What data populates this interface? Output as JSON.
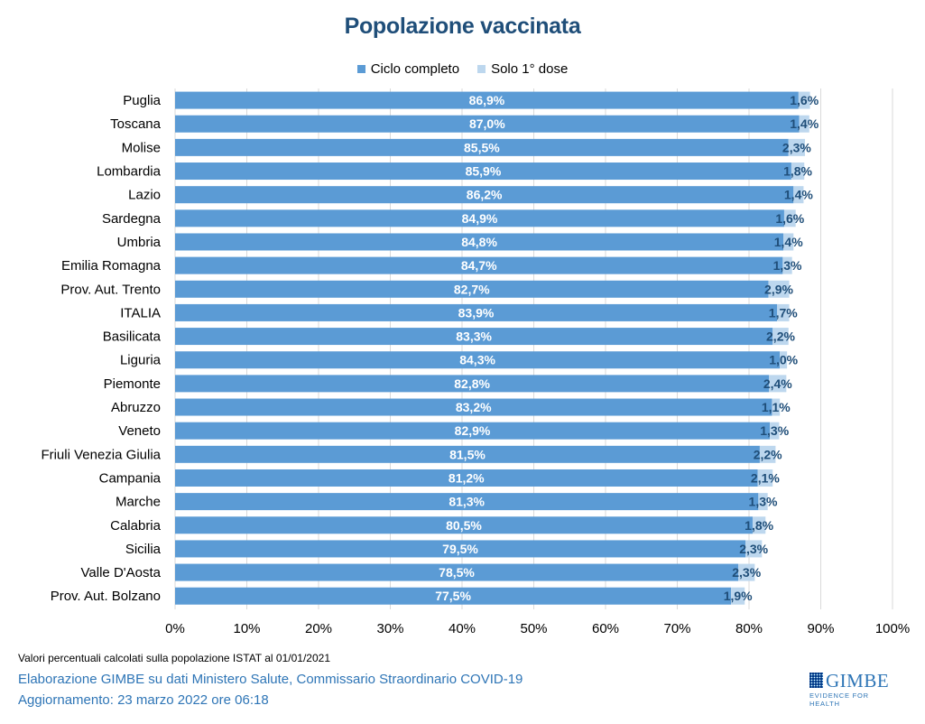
{
  "title": "Popolazione vaccinata",
  "colors": {
    "ciclo_completo": "#5b9bd5",
    "solo_prima_dose": "#bdd7ee",
    "title": "#1f4e79",
    "footer": "#2e75b6"
  },
  "legend": [
    {
      "label": "Ciclo completo",
      "color": "#5b9bd5"
    },
    {
      "label": "Solo 1° dose",
      "color": "#bdd7ee"
    }
  ],
  "chart_data": {
    "type": "bar",
    "orientation": "horizontal",
    "stacked": true,
    "title": "Popolazione vaccinata",
    "categories": [
      "Puglia",
      "Toscana",
      "Molise",
      "Lombardia",
      "Lazio",
      "Sardegna",
      "Umbria",
      "Emilia Romagna",
      "Prov. Aut. Trento",
      "ITALIA",
      "Basilicata",
      "Liguria",
      "Piemonte",
      "Abruzzo",
      "Veneto",
      "Friuli Venezia Giulia",
      "Campania",
      "Marche",
      "Calabria",
      "Sicilia",
      "Valle D'Aosta",
      "Prov. Aut. Bolzano"
    ],
    "series": [
      {
        "name": "Ciclo completo",
        "color": "#5b9bd5",
        "values": [
          86.9,
          87.0,
          85.5,
          85.9,
          86.2,
          84.9,
          84.8,
          84.7,
          82.7,
          83.9,
          83.3,
          84.3,
          82.8,
          83.2,
          82.9,
          81.5,
          81.2,
          81.3,
          80.5,
          79.5,
          78.5,
          77.5
        ],
        "labels": [
          "86,9%",
          "87,0%",
          "85,5%",
          "85,9%",
          "86,2%",
          "84,9%",
          "84,8%",
          "84,7%",
          "82,7%",
          "83,9%",
          "83,3%",
          "84,3%",
          "82,8%",
          "83,2%",
          "82,9%",
          "81,5%",
          "81,2%",
          "81,3%",
          "80,5%",
          "79,5%",
          "78,5%",
          "77,5%"
        ]
      },
      {
        "name": "Solo 1° dose",
        "color": "#bdd7ee",
        "values": [
          1.6,
          1.4,
          2.3,
          1.8,
          1.4,
          1.6,
          1.4,
          1.3,
          2.9,
          1.7,
          2.2,
          1.0,
          2.4,
          1.1,
          1.3,
          2.2,
          2.1,
          1.3,
          1.8,
          2.3,
          2.3,
          1.9
        ],
        "labels": [
          "1,6%",
          "1,4%",
          "2,3%",
          "1,8%",
          "1,4%",
          "1,6%",
          "1,4%",
          "1,3%",
          "2,9%",
          "1,7%",
          "2,2%",
          "1,0%",
          "2,4%",
          "1,1%",
          "1,3%",
          "2,2%",
          "2,1%",
          "1,3%",
          "1,8%",
          "2,3%",
          "2,3%",
          "1,9%"
        ]
      }
    ],
    "xlim": [
      0,
      100
    ],
    "xticks": [
      "0%",
      "10%",
      "20%",
      "30%",
      "40%",
      "50%",
      "60%",
      "70%",
      "80%",
      "90%",
      "100%"
    ],
    "grid": true,
    "legend_position": "top"
  },
  "footer": {
    "note": "Valori percentuali calcolati sulla popolazione ISTAT al 01/01/2021",
    "source": "Elaborazione GIMBE su dati Ministero Salute, Commissario Straordinario  COVID-19",
    "updated": "Aggiornamento:  23 marzo 2022 ore 06:18"
  },
  "logo": {
    "name": "GIMBE",
    "tagline": "EVIDENCE FOR HEALTH"
  }
}
